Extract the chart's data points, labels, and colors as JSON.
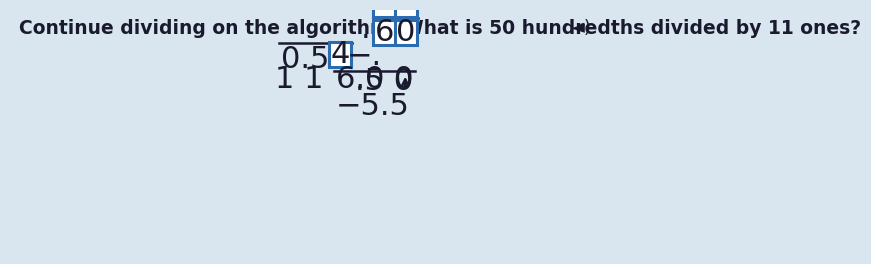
{
  "title": "Continue dividing on the algorithm. What is 50 hundredths divided by 11 ones?",
  "bg_color": "#d9e6f0",
  "text_color": "#1a1a2e",
  "font_size_title": 13.5,
  "font_size_math": 22,
  "box_color": "#2b6cb0",
  "box_bg": "white",
  "speaker_color": "#1a1a2e"
}
